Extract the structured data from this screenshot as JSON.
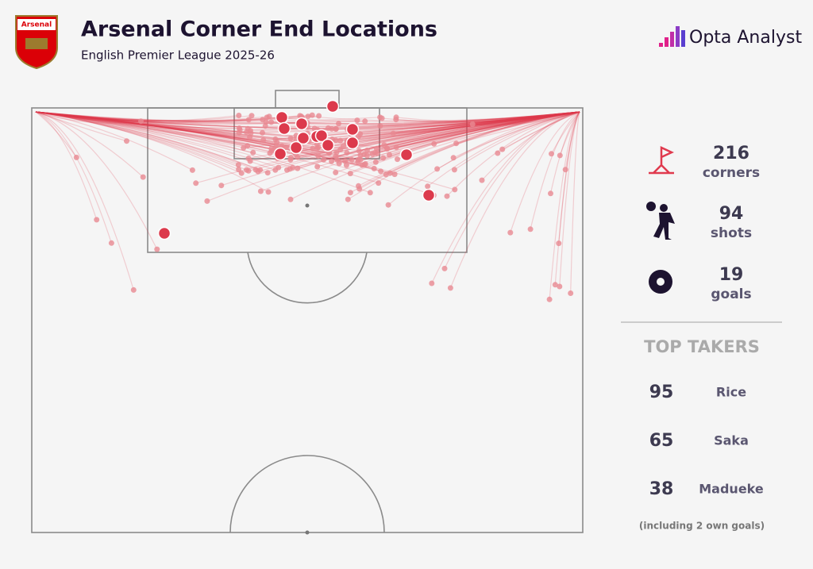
{
  "header": {
    "title": "Arsenal Corner End Locations",
    "subtitle": "English Premier League 2025-26",
    "badge": "Arsenal",
    "brand": "Opta Analyst"
  },
  "stats": [
    {
      "value": 216,
      "label": "corners"
    },
    {
      "value": 94,
      "label": "shots"
    },
    {
      "value": 19,
      "label": "goals"
    }
  ],
  "top_takers": {
    "title": "TOP TAKERS",
    "rows": [
      {
        "count": 95,
        "name": "Rice"
      },
      {
        "count": 65,
        "name": "Saka"
      },
      {
        "count": 38,
        "name": "Madueke"
      }
    ]
  },
  "footnote": "(including 2 own goals)"
}
